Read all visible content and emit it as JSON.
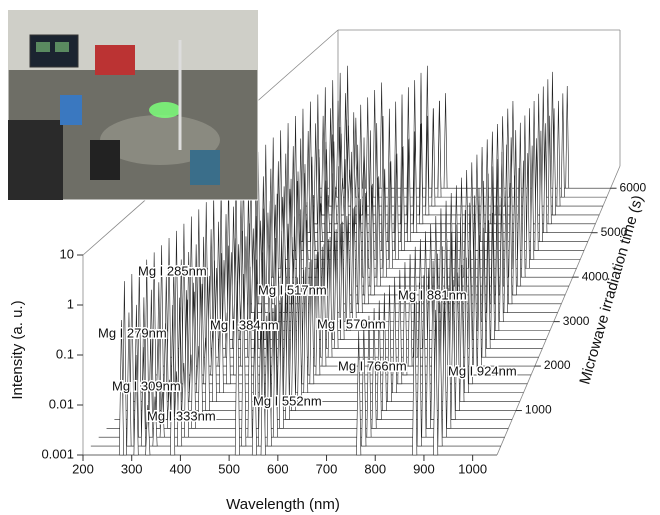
{
  "chart_data": {
    "type": "waterfall",
    "xlabel": "Wavelength (nm)",
    "ylabel": "Intensity (a. u.)",
    "zlabel": "Microwave irradiation time (s)",
    "xlim": [
      200,
      1050
    ],
    "xticks": [
      200,
      300,
      400,
      500,
      600,
      700,
      800,
      900,
      1000
    ],
    "ylim": [
      0.001,
      10
    ],
    "yscale": "log",
    "yticks": [
      0.001,
      0.01,
      0.1,
      1,
      10
    ],
    "zlim": [
      0,
      6500
    ],
    "zticks": [
      1000,
      2000,
      3000,
      4000,
      5000,
      6000
    ],
    "times": [
      0,
      200,
      400,
      600,
      800,
      1000,
      1200,
      1400,
      1600,
      1800,
      2000,
      2200,
      2400,
      2600,
      2800,
      3000,
      3200,
      3400,
      3600,
      3800,
      4000,
      4200,
      4400,
      4600,
      4800,
      5000,
      5200,
      5400,
      5600,
      5800,
      6000
    ],
    "color": "#222222",
    "peaks": [
      {
        "label": "Mg I 285nm",
        "wavelength": 285,
        "intensity": 3
      },
      {
        "label": "Mg I 517nm",
        "wavelength": 517,
        "intensity": 3
      },
      {
        "label": "Mg I 384nm",
        "wavelength": 384,
        "intensity": 1
      },
      {
        "label": "Mg I 279nm",
        "wavelength": 279,
        "intensity": 0.5
      },
      {
        "label": "Mg I 570nm",
        "wavelength": 570,
        "intensity": 0.5
      },
      {
        "label": "Mg I 881nm",
        "wavelength": 881,
        "intensity": 2
      },
      {
        "label": "Mg I 309nm",
        "wavelength": 309,
        "intensity": 0.1
      },
      {
        "label": "Mg I 766nm",
        "wavelength": 766,
        "intensity": 0.3
      },
      {
        "label": "Mg I 924nm",
        "wavelength": 924,
        "intensity": 0.8
      },
      {
        "label": "Mg I 552nm",
        "wavelength": 552,
        "intensity": 0.3
      },
      {
        "label": "Mg I 333nm",
        "wavelength": 333,
        "intensity": 0.01
      }
    ]
  }
}
